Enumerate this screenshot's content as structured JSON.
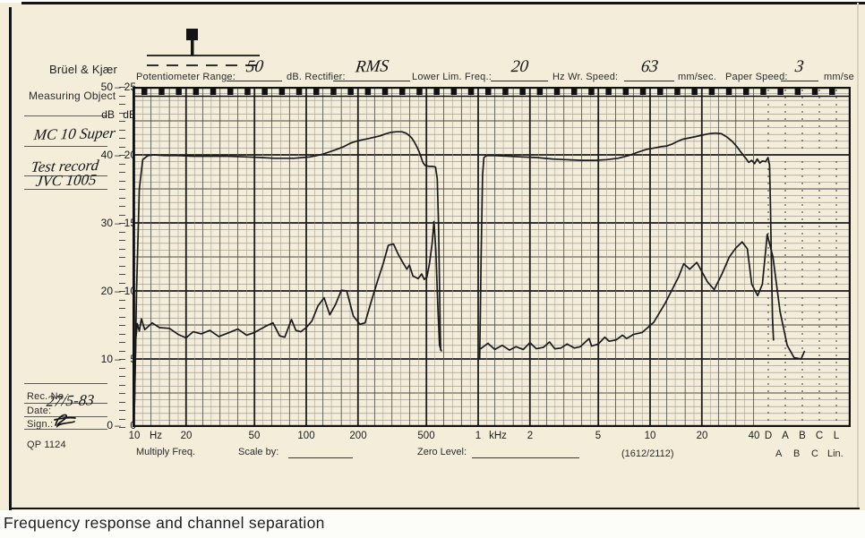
{
  "caption": "Frequency response and channel separation",
  "header": {
    "brand": "Brüel & Kjær",
    "segments": [
      {
        "text": "Potentiometer Range:",
        "handwritten": false
      },
      {
        "text": "50",
        "handwritten": true
      },
      {
        "text": "dB. Rectifier:",
        "handwritten": false
      },
      {
        "text": "RMS",
        "handwritten": true
      },
      {
        "text": "Lower Lim. Freq.:",
        "handwritten": false
      },
      {
        "text": "20",
        "handwritten": true
      },
      {
        "text": "Hz Wr. Speed:",
        "handwritten": false
      },
      {
        "text": "63",
        "handwritten": true
      },
      {
        "text": "mm/sec.",
        "handwritten": false
      },
      {
        "text": "Paper Speed:",
        "handwritten": false
      },
      {
        "text": "3",
        "handwritten": true
      },
      {
        "text": "mm/se",
        "handwritten": false
      }
    ]
  },
  "sidebar": {
    "measuring_object_label": "Measuring Object",
    "entries": [
      "MC 10 Super",
      "Test record",
      "JVC 1005"
    ],
    "rec_no_label": "Rec. No.:",
    "date_label": "Date:",
    "date_value": "27/5-83",
    "sign_label": "Sign.:",
    "form_number": "QP 1124"
  },
  "footer": {
    "multiply_freq_label": "Multiply Freq.",
    "scale_by_label": "Scale by:",
    "zero_level_label": "Zero Level:",
    "model_number": "(1612/2112)",
    "filter_row": [
      "A",
      "B",
      "C",
      "Lin."
    ]
  },
  "colors": {
    "paper": "#f3edda",
    "ink": "#1a1a1a",
    "grid_major": "#1c1c1c",
    "grid_medium": "#4a4a4a",
    "grid_minor": "#8f8f8f"
  },
  "chart_data": {
    "type": "line",
    "title": "Frequency response and channel separation",
    "grid": true,
    "x_axis": {
      "scale": "log",
      "unit": "Hz",
      "range": [
        10,
        40000
      ],
      "ticks": [
        {
          "label": "10",
          "f": 10
        },
        {
          "label": "Hz",
          "f": 13.4
        },
        {
          "label": "20",
          "f": 20
        },
        {
          "label": "50",
          "f": 50
        },
        {
          "label": "100",
          "f": 100
        },
        {
          "label": "200",
          "f": 200
        },
        {
          "label": "500",
          "f": 500
        },
        {
          "label": "1",
          "f": 1000
        },
        {
          "label": "kHz",
          "f": 1300
        },
        {
          "label": "2",
          "f": 2000
        },
        {
          "label": "5",
          "f": 5000
        },
        {
          "label": "10",
          "f": 10000
        },
        {
          "label": "20",
          "f": 20000
        },
        {
          "label": "40",
          "f": 40000
        }
      ],
      "lin_section_ticks": [
        "D",
        "A",
        "B",
        "C",
        "L"
      ]
    },
    "y_axis": {
      "unit_label": "dB dB",
      "outer_range_db": [
        0,
        50
      ],
      "inner_range_db": [
        0,
        25
      ],
      "tick_rows": [
        [
          "50",
          "25"
        ],
        [
          "40",
          "20"
        ],
        [
          "30",
          "15"
        ],
        [
          "20",
          "10"
        ],
        [
          "10",
          "5"
        ],
        [
          "0",
          "0"
        ]
      ]
    },
    "series": [
      {
        "name": "frequency response (upper trace)",
        "segments": [
          [
            [
              10,
              2
            ],
            [
              10.3,
              20
            ],
            [
              10.7,
              35
            ],
            [
              11.2,
              39.3
            ],
            [
              12,
              39.9
            ],
            [
              13,
              40
            ],
            [
              15,
              39.9
            ],
            [
              18,
              39.9
            ],
            [
              22,
              39.8
            ],
            [
              28,
              39.8
            ],
            [
              35,
              39.8
            ],
            [
              45,
              39.7
            ],
            [
              55,
              39.6
            ],
            [
              65,
              39.5
            ],
            [
              75,
              39.5
            ],
            [
              85,
              39.5
            ],
            [
              95,
              39.6
            ],
            [
              105,
              39.7
            ],
            [
              115,
              39.9
            ],
            [
              125,
              40.1
            ],
            [
              135,
              40.4
            ],
            [
              150,
              40.8
            ],
            [
              165,
              41.2
            ],
            [
              180,
              41.7
            ],
            [
              195,
              42
            ],
            [
              210,
              42.2
            ],
            [
              230,
              42.4
            ],
            [
              250,
              42.6
            ],
            [
              270,
              42.8
            ],
            [
              290,
              43.1
            ],
            [
              310,
              43.3
            ],
            [
              335,
              43.4
            ],
            [
              360,
              43.4
            ],
            [
              380,
              43.2
            ],
            [
              395,
              42.9
            ],
            [
              410,
              42.5
            ],
            [
              425,
              41.9
            ],
            [
              440,
              41.2
            ],
            [
              455,
              40.4
            ],
            [
              465,
              39.7
            ],
            [
              475,
              39
            ],
            [
              485,
              38.6
            ],
            [
              495,
              38.4
            ],
            [
              520,
              38.3
            ],
            [
              545,
              38.3
            ],
            [
              565,
              38.2
            ],
            [
              578,
              36.5
            ],
            [
              588,
              30
            ],
            [
              595,
              22
            ],
            [
              601,
              15
            ],
            [
              605,
              11.3
            ]
          ],
          [
            [
              1020,
              10
            ],
            [
              1040,
              25
            ],
            [
              1060,
              37
            ],
            [
              1080,
              39.6
            ],
            [
              1120,
              39.9
            ],
            [
              1250,
              39.9
            ],
            [
              1500,
              39.8
            ],
            [
              1800,
              39.7
            ],
            [
              2200,
              39.6
            ],
            [
              2700,
              39.4
            ],
            [
              3200,
              39.3
            ],
            [
              4000,
              39.2
            ],
            [
              4800,
              39.2
            ],
            [
              5600,
              39.3
            ],
            [
              6500,
              39.5
            ],
            [
              7500,
              39.9
            ],
            [
              8500,
              40.4
            ],
            [
              9500,
              40.8
            ],
            [
              10500,
              41
            ],
            [
              11500,
              41.2
            ],
            [
              12500,
              41.3
            ],
            [
              13500,
              41.6
            ],
            [
              14500,
              42
            ],
            [
              15500,
              42.3
            ],
            [
              17000,
              42.5
            ],
            [
              18500,
              42.7
            ],
            [
              20000,
              42.9
            ],
            [
              22000,
              43.1
            ],
            [
              24000,
              43.2
            ],
            [
              26000,
              43.1
            ],
            [
              28000,
              42.6
            ],
            [
              30000,
              42
            ],
            [
              32000,
              41.2
            ],
            [
              34000,
              40.3
            ],
            [
              36000,
              39.5
            ],
            [
              37500,
              38.9
            ],
            [
              39000,
              39.2
            ],
            [
              40500,
              38.7
            ],
            [
              42000,
              39.4
            ],
            [
              43500,
              38.8
            ],
            [
              45000,
              39.1
            ],
            [
              47000,
              39
            ],
            [
              48500,
              39.6
            ],
            [
              49500,
              38.5
            ],
            [
              50200,
              32
            ],
            [
              50800,
              24
            ],
            [
              51500,
              16
            ],
            [
              52200,
              12.8
            ]
          ]
        ]
      },
      {
        "name": "channel separation (lower trace)",
        "segments": [
          [
            [
              10,
              2
            ],
            [
              10.2,
              13
            ],
            [
              10.4,
              15.2
            ],
            [
              10.7,
              14.1
            ],
            [
              11,
              15.9
            ],
            [
              11.5,
              14.3
            ],
            [
              12.7,
              15.3
            ],
            [
              14,
              14.6
            ],
            [
              16,
              14.5
            ],
            [
              18,
              13.6
            ],
            [
              20,
              13.1
            ],
            [
              22,
              14
            ],
            [
              24.5,
              13.7
            ],
            [
              27.5,
              14.2
            ],
            [
              31,
              13.3
            ],
            [
              35,
              13.8
            ],
            [
              40,
              14.4
            ],
            [
              45,
              13.5
            ],
            [
              50,
              13.9
            ],
            [
              59,
              14.9
            ],
            [
              64,
              15.3
            ],
            [
              70,
              13.4
            ],
            [
              75,
              13.2
            ],
            [
              82,
              15.8
            ],
            [
              87,
              14.2
            ],
            [
              93,
              14
            ],
            [
              100,
              14.6
            ],
            [
              108,
              15.6
            ],
            [
              117,
              17.8
            ],
            [
              127,
              19
            ],
            [
              137,
              16.5
            ],
            [
              148,
              18
            ],
            [
              160,
              20.1
            ],
            [
              172,
              20
            ],
            [
              188,
              16.3
            ],
            [
              205,
              15.1
            ],
            [
              220,
              15.3
            ],
            [
              239,
              18.5
            ],
            [
              260,
              21.5
            ],
            [
              280,
              24
            ],
            [
              300,
              26.7
            ],
            [
              322,
              26.9
            ],
            [
              341,
              25.5
            ],
            [
              362,
              24.3
            ],
            [
              385,
              23.2
            ],
            [
              398,
              23.8
            ],
            [
              417,
              22.2
            ],
            [
              448,
              21.8
            ],
            [
              469,
              22.5
            ],
            [
              486,
              21.7
            ],
            [
              503,
              22
            ],
            [
              521,
              24
            ],
            [
              540,
              27
            ],
            [
              553,
              30.2
            ],
            [
              567,
              26
            ],
            [
              582,
              18
            ],
            [
              596,
              12
            ],
            [
              611,
              11.2
            ]
          ],
          [
            [
              1034,
              11.5
            ],
            [
              1140,
              12.3
            ],
            [
              1250,
              11.4
            ],
            [
              1380,
              12
            ],
            [
              1520,
              11.3
            ],
            [
              1660,
              11.8
            ],
            [
              1830,
              11.4
            ],
            [
              2000,
              12.4
            ],
            [
              2180,
              11.5
            ],
            [
              2390,
              11.7
            ],
            [
              2600,
              12.5
            ],
            [
              2790,
              11.5
            ],
            [
              3030,
              11.6
            ],
            [
              3290,
              12.2
            ],
            [
              3620,
              11.6
            ],
            [
              3930,
              11.8
            ],
            [
              4420,
              13
            ],
            [
              4570,
              11.9
            ],
            [
              5000,
              12.2
            ],
            [
              5450,
              13.2
            ],
            [
              5780,
              12.6
            ],
            [
              6350,
              12.8
            ],
            [
              6900,
              13.5
            ],
            [
              7300,
              13
            ],
            [
              8000,
              13.6
            ],
            [
              9000,
              13.9
            ],
            [
              10500,
              15.4
            ],
            [
              12300,
              18.3
            ],
            [
              14600,
              22
            ],
            [
              15700,
              24
            ],
            [
              17000,
              23.2
            ],
            [
              18700,
              24.2
            ],
            [
              21600,
              21.3
            ],
            [
              23600,
              20.2
            ],
            [
              26200,
              22.5
            ],
            [
              28900,
              25
            ],
            [
              31500,
              26.3
            ],
            [
              34300,
              27.2
            ],
            [
              36800,
              26.2
            ],
            [
              39000,
              21
            ],
            [
              42200,
              19.3
            ],
            [
              45000,
              21
            ],
            [
              48000,
              28.3
            ],
            [
              51800,
              25
            ],
            [
              57000,
              17
            ],
            [
              62700,
              12
            ],
            [
              68800,
              10.2
            ],
            [
              75600,
              10
            ],
            [
              79000,
              11.1
            ]
          ]
        ]
      }
    ]
  }
}
